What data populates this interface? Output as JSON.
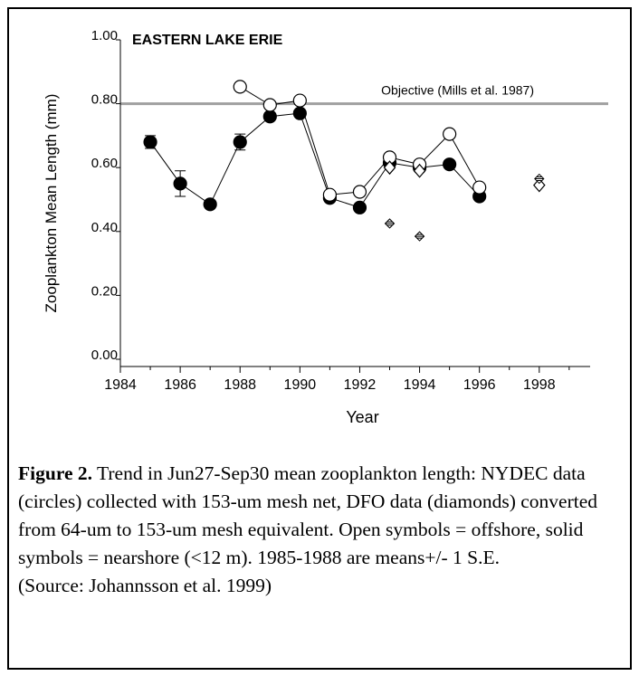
{
  "chart_data": {
    "type": "scatter",
    "title": "EASTERN LAKE ERIE",
    "xlabel": "Year",
    "ylabel": "Zooplankton Mean Length (mm)",
    "xlim": [
      1984,
      1999.7
    ],
    "ylim": [
      0,
      1
    ],
    "xticks": [
      1984,
      1986,
      1988,
      1990,
      1992,
      1994,
      1996,
      1998
    ],
    "xminor_ticks": [
      1985,
      1987,
      1989,
      1991,
      1993,
      1995,
      1997,
      1999
    ],
    "yticks": [
      {
        "value": 0,
        "label": "0.00"
      },
      {
        "value": 0.2,
        "label": "0.20"
      },
      {
        "value": 0.4,
        "label": "0.40"
      },
      {
        "value": 0.6,
        "label": "0.60"
      },
      {
        "value": 0.8,
        "label": "0.80"
      },
      {
        "value": 1,
        "label": "1.00"
      }
    ],
    "reference_line": {
      "value": 0.8,
      "label": "Objective (Mills et al. 1987)",
      "color": "#a0a0a0"
    },
    "series": [
      {
        "color": "#000000",
        "marker": "circle",
        "filled": true,
        "connected": true,
        "x": [
          1985,
          1986,
          1987,
          1988,
          1989,
          1990,
          1991,
          1992,
          1993,
          1994,
          1995,
          1996
        ],
        "values": [
          0.68,
          0.55,
          0.485,
          0.68,
          0.76,
          0.77,
          0.505,
          0.475,
          0.615,
          0.6,
          0.61,
          0.51
        ],
        "errors": [
          0.02,
          0.04,
          0.01,
          0.025,
          null,
          null,
          null,
          null,
          null,
          null,
          null,
          null
        ]
      },
      {
        "color": "#000000",
        "marker": "circle",
        "filled": false,
        "connected": true,
        "x": [
          1988,
          1989,
          1990,
          1991,
          1992,
          1993,
          1994,
          1995,
          1996
        ],
        "values": [
          0.853,
          0.796,
          0.81,
          0.515,
          0.524,
          0.632,
          0.61,
          0.705,
          0.538
        ]
      },
      {
        "color": "#000000",
        "marker": "diamond",
        "filled": false,
        "connected": false,
        "x": [
          1993,
          1994,
          1998
        ],
        "values": [
          0.6,
          0.59,
          0.545
        ]
      },
      {
        "color": "#000000",
        "marker": "diamond-striped",
        "filled": false,
        "connected": false,
        "x": [
          1993,
          1994,
          1998
        ],
        "values": [
          0.425,
          0.385,
          0.565
        ]
      }
    ]
  },
  "caption": {
    "label": "Figure 2.",
    "text": "Trend in Jun27-Sep30 mean zooplankton length: NYDEC data (circles) collected with 153-um mesh net, DFO data (diamonds) converted from 64-um to 153-um mesh equivalent.  Open symbols = offshore, solid symbols = nearshore (<12 m). 1985-1988 are means+/- 1 S.E.",
    "source": "(Source: Johannsson et al. 1999)"
  }
}
